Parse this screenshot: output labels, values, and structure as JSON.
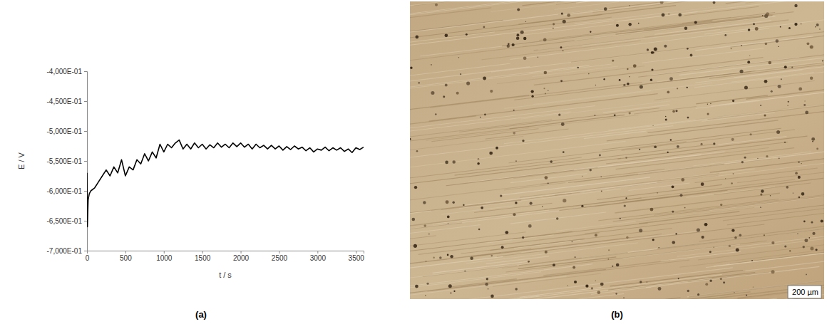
{
  "chart_data": {
    "type": "line",
    "title": "(a)",
    "x_label": "t / s",
    "y_label": "E / V",
    "color": "#000000",
    "grid": false,
    "xlim": [
      0,
      3600
    ],
    "xticks": [
      0,
      500,
      1000,
      1500,
      2000,
      2500,
      3000,
      3500
    ],
    "ylim": [
      -0.7,
      -0.4
    ],
    "yticks": [
      {
        "value": -0.7,
        "label": "-7,000E-01"
      },
      {
        "value": -0.65,
        "label": "-6,500E-01"
      },
      {
        "value": -0.6,
        "label": "-6,000E-01"
      },
      {
        "value": -0.55,
        "label": "-5,500E-01"
      },
      {
        "value": -0.5,
        "label": "-5,000E-01"
      },
      {
        "value": -0.45,
        "label": "-4,500E-01"
      },
      {
        "value": -0.4,
        "label": "-4,000E-01"
      }
    ],
    "x": [
      0,
      5,
      15,
      30,
      50,
      100,
      150,
      200,
      250,
      300,
      350,
      400,
      450,
      500,
      550,
      600,
      650,
      700,
      750,
      800,
      850,
      900,
      950,
      1000,
      1050,
      1100,
      1150,
      1200,
      1250,
      1300,
      1350,
      1400,
      1450,
      1500,
      1550,
      1600,
      1650,
      1700,
      1750,
      1800,
      1850,
      1900,
      1950,
      2000,
      2050,
      2100,
      2150,
      2200,
      2250,
      2300,
      2350,
      2400,
      2450,
      2500,
      2550,
      2600,
      2650,
      2700,
      2750,
      2800,
      2850,
      2900,
      2950,
      3000,
      3050,
      3100,
      3150,
      3200,
      3250,
      3300,
      3350,
      3400,
      3450,
      3500,
      3550,
      3600
    ],
    "values": [
      -0.57,
      -0.66,
      -0.615,
      -0.605,
      -0.6,
      -0.595,
      -0.585,
      -0.575,
      -0.565,
      -0.575,
      -0.56,
      -0.57,
      -0.548,
      -0.575,
      -0.56,
      -0.565,
      -0.548,
      -0.555,
      -0.538,
      -0.55,
      -0.535,
      -0.545,
      -0.522,
      -0.535,
      -0.522,
      -0.528,
      -0.52,
      -0.515,
      -0.53,
      -0.522,
      -0.53,
      -0.52,
      -0.528,
      -0.522,
      -0.53,
      -0.523,
      -0.528,
      -0.52,
      -0.527,
      -0.522,
      -0.528,
      -0.52,
      -0.526,
      -0.52,
      -0.527,
      -0.522,
      -0.53,
      -0.522,
      -0.528,
      -0.524,
      -0.53,
      -0.524,
      -0.53,
      -0.525,
      -0.532,
      -0.526,
      -0.531,
      -0.525,
      -0.53,
      -0.527,
      -0.533,
      -0.528,
      -0.535,
      -0.53,
      -0.532,
      -0.527,
      -0.533,
      -0.528,
      -0.532,
      -0.528,
      -0.534,
      -0.53,
      -0.536,
      -0.528,
      -0.531,
      -0.527
    ]
  },
  "micrograph": {
    "label": "(b)",
    "scale_bar": "200 µm"
  }
}
